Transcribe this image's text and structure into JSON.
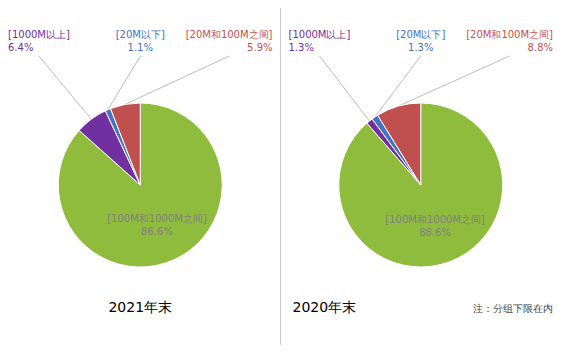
{
  "chart_data": [
    {
      "type": "pie",
      "title": "2021年末",
      "categories": [
        "[100M和1000M之间]",
        "[1000M以上]",
        "[20M以下]",
        "[20M和100M之间]"
      ],
      "values": [
        86.6,
        6.4,
        1.1,
        5.9
      ],
      "value_labels": [
        "86.6%",
        "6.4%",
        "1.1%",
        "5.9%"
      ],
      "colors": [
        "#8fbc3c",
        "#7030a0",
        "#4472c4",
        "#c0504d"
      ],
      "data_labels": true
    },
    {
      "type": "pie",
      "title": "2020年末",
      "categories": [
        "[100M和1000M之间]",
        "[1000M以上]",
        "[20M以下]",
        "[20M和100M之间]"
      ],
      "values": [
        88.6,
        1.3,
        1.3,
        8.8
      ],
      "value_labels": [
        "88.6%",
        "1.3%",
        "1.3%",
        "8.8%"
      ],
      "colors": [
        "#8fbc3c",
        "#7030a0",
        "#4472c4",
        "#c0504d"
      ],
      "data_labels": true,
      "annotations": [
        "注：分组下限在内"
      ]
    }
  ]
}
